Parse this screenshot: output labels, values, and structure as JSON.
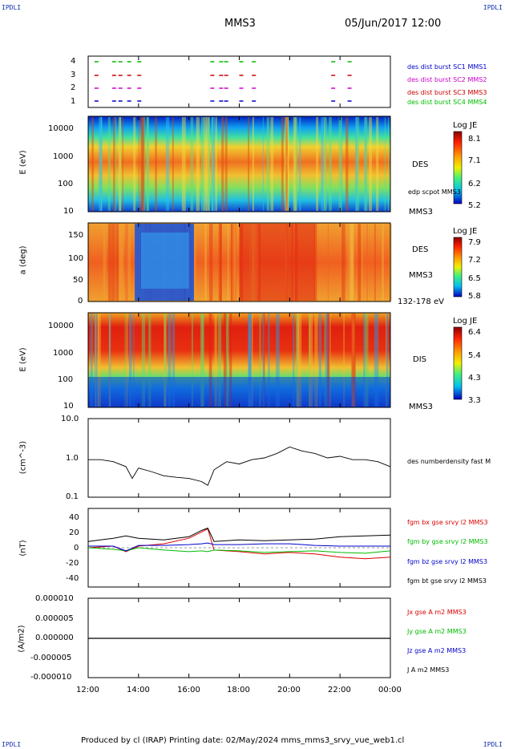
{
  "corners": {
    "tl": "IPDLI",
    "tr": "IPDLI",
    "bl": "IPDLI",
    "br": "IPDLI"
  },
  "header": {
    "spacecraft": "MMS3",
    "date": "05/Jun/2017 12:00"
  },
  "footer": {
    "text": "Produced by cl (IRAP)   Printing date: 02/May/2024   mms_mms3_srvy_vue_web1.cl"
  },
  "time_ticks": [
    "12:00",
    "14:00",
    "16:00",
    "18:00",
    "20:00",
    "22:00",
    "00:00"
  ],
  "panels": {
    "burst": {
      "yticks": [
        "4",
        "3",
        "2",
        "1"
      ],
      "legend": [
        {
          "text": "des dist burst SC1 MMS1",
          "color": "#0000cc"
        },
        {
          "text": "des dist burst SC2 MMS2",
          "color": "#cc00cc"
        },
        {
          "text": "des dist burst SC3 MMS3",
          "color": "#cc0000"
        },
        {
          "text": "des dist burst SC4 MMS4",
          "color": "#00bb00"
        }
      ]
    },
    "des_energy": {
      "ylabel": "E (eV)",
      "yticks": [
        "10000",
        "1000",
        "100",
        "10"
      ],
      "right_label": "DES",
      "right_sub": "edp scpot MMS3",
      "right_bottom": "MMS3",
      "cbar": {
        "title": "Log JE",
        "ticks": [
          "8.1",
          "7.1",
          "6.2",
          "5.2"
        ]
      }
    },
    "des_pitch": {
      "ylabel": "a (deg)",
      "yticks": [
        "150",
        "100",
        "50",
        "0"
      ],
      "right_label": "DES",
      "right_sub": "MMS3",
      "right_bottom": "132-178 eV",
      "cbar": {
        "title": "Log JE",
        "ticks": [
          "7.9",
          "7.2",
          "6.5",
          "5.8"
        ]
      }
    },
    "dis_energy": {
      "ylabel": "E (eV)",
      "yticks": [
        "10000",
        "1000",
        "100",
        "10"
      ],
      "right_label": "DIS",
      "right_bottom": "MMS3",
      "cbar": {
        "title": "Log JE",
        "ticks": [
          "6.4",
          "5.4",
          "4.3",
          "3.3"
        ]
      }
    },
    "density": {
      "ylabel": "(cm^-3)",
      "yticks": [
        "10.0",
        "1.0",
        "0.1"
      ],
      "legend": "des numberdensity fast M"
    },
    "bfield": {
      "ylabel": "(nT)",
      "yticks": [
        "40",
        "20",
        "0",
        "-20",
        "-40"
      ],
      "legend": [
        {
          "text": "fgm bx gse srvy l2 MMS3",
          "color": "#dd0000"
        },
        {
          "text": "fgm by gse srvy l2 MMS3",
          "color": "#00bb00"
        },
        {
          "text": "fgm bz gse srvy l2 MMS3",
          "color": "#0000cc"
        },
        {
          "text": "fgm bt gse srvy l2 MMS3",
          "color": "#000000"
        }
      ]
    },
    "current": {
      "ylabel": "(A/m2)",
      "yticks": [
        "0.000010",
        "0.000005",
        "0.000000",
        "-0.000005",
        "-0.000010"
      ],
      "legend": [
        {
          "text": "Jx gse A m2 MMS3",
          "color": "#dd0000"
        },
        {
          "text": "Jy gse A m2 MMS3",
          "color": "#00bb00"
        },
        {
          "text": "Jz gse A m2 MMS3",
          "color": "#0000cc"
        },
        {
          "text": "J A m2 MMS3",
          "color": "#000000"
        }
      ]
    }
  },
  "chart_data": [
    {
      "type": "line",
      "title": "des numberdensity fast M",
      "ylabel": "(cm^-3)",
      "yscale": "log",
      "ylim": [
        0.1,
        10.0
      ],
      "x": [
        "12:00",
        "12:30",
        "13:00",
        "13:30",
        "13:45",
        "14:00",
        "14:30",
        "15:00",
        "15:30",
        "16:00",
        "16:30",
        "16:45",
        "17:00",
        "17:30",
        "18:00",
        "18:30",
        "19:00",
        "19:30",
        "20:00",
        "20:30",
        "21:00",
        "21:30",
        "22:00",
        "22:30",
        "23:00",
        "23:30",
        "00:00"
      ],
      "values": [
        0.9,
        0.9,
        0.8,
        0.6,
        0.3,
        0.55,
        0.45,
        0.35,
        0.32,
        0.3,
        0.25,
        0.2,
        0.5,
        0.8,
        0.7,
        0.9,
        1.0,
        1.3,
        1.9,
        1.5,
        1.3,
        1.0,
        1.1,
        0.9,
        0.9,
        0.8,
        0.6
      ]
    },
    {
      "type": "line",
      "ylabel": "(nT)",
      "ylim": [
        -50,
        50
      ],
      "x": [
        "12:00",
        "13:00",
        "13:30",
        "14:00",
        "15:00",
        "16:00",
        "16:30",
        "16:45",
        "17:00",
        "18:00",
        "19:00",
        "20:00",
        "21:00",
        "22:00",
        "23:00",
        "00:00"
      ],
      "series": [
        {
          "name": "fgm bx gse srvy l2 MMS3",
          "values": [
            0,
            2,
            -5,
            2,
            5,
            12,
            20,
            24,
            -3,
            -5,
            -8,
            -6,
            -8,
            -12,
            -14,
            -12
          ]
        },
        {
          "name": "fgm by gse srvy l2 MMS3",
          "values": [
            0,
            -2,
            -4,
            0,
            -3,
            -5,
            -4,
            -5,
            -3,
            -4,
            -6,
            -5,
            -4,
            -6,
            -7,
            -4
          ]
        },
        {
          "name": "fgm bz gse srvy l2 MMS3",
          "values": [
            2,
            2,
            -4,
            3,
            3,
            4,
            5,
            6,
            4,
            4,
            5,
            5,
            3,
            2,
            2,
            2
          ]
        },
        {
          "name": "fgm bt gse srvy l2 MMS3",
          "values": [
            8,
            12,
            15,
            12,
            10,
            14,
            22,
            25,
            8,
            10,
            9,
            10,
            11,
            14,
            15,
            16
          ]
        }
      ]
    },
    {
      "type": "line",
      "ylabel": "(A/m2)",
      "ylim": [
        -1e-05,
        1e-05
      ],
      "x": [
        "12:00",
        "00:00"
      ],
      "series": [
        {
          "name": "J A m2 MMS3",
          "values": [
            0.0,
            0.0
          ]
        }
      ]
    },
    {
      "type": "heatmap",
      "title": "DES",
      "ylabel": "E (eV)",
      "yscale": "log",
      "ylim": [
        10,
        30000
      ],
      "colorbar": {
        "title": "Log JE",
        "range": [
          5.2,
          8.1
        ]
      }
    },
    {
      "type": "heatmap",
      "title": "DES",
      "ylabel": "a (deg)",
      "ylim": [
        0,
        180
      ],
      "colorbar": {
        "title": "Log JE",
        "range": [
          5.8,
          7.9
        ]
      }
    },
    {
      "type": "heatmap",
      "title": "DIS",
      "ylabel": "E (eV)",
      "yscale": "log",
      "ylim": [
        10,
        30000
      ],
      "colorbar": {
        "title": "Log JE",
        "range": [
          3.3,
          6.4
        ]
      }
    }
  ]
}
